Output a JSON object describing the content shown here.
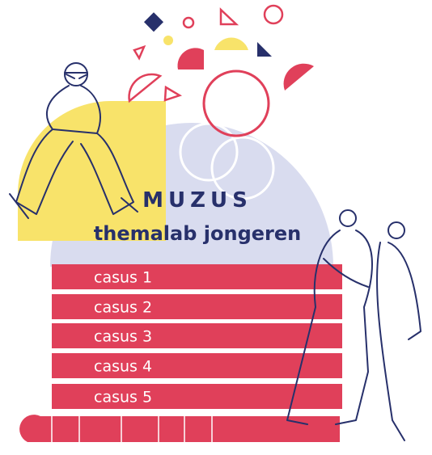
{
  "logo": "MUZUS",
  "subtitle": "themalab jongeren",
  "menu": [
    "casus 1",
    "casus 2",
    "casus 3",
    "casus 4",
    "casus 5"
  ]
}
